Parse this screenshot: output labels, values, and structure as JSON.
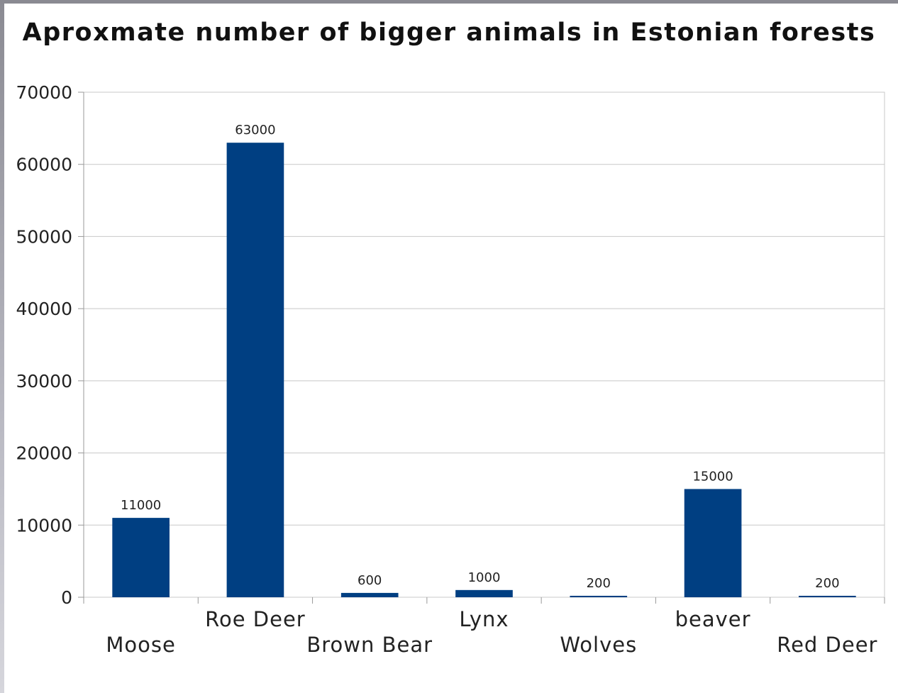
{
  "chart_data": {
    "type": "bar",
    "title": "Aproxmate number of bigger animals in Estonian forests",
    "categories": [
      "Moose",
      "Roe Deer",
      "Brown Bear",
      "Lynx",
      "Wolves",
      "beaver",
      "Red Deer"
    ],
    "values": [
      11000,
      63000,
      600,
      1000,
      200,
      15000,
      200
    ],
    "data_labels": [
      "11000",
      "63000",
      "600",
      "1000",
      "200",
      "15000",
      "200"
    ],
    "xlabel": "",
    "ylabel": "",
    "ylim": [
      0,
      70000
    ],
    "yticks": [
      0,
      10000,
      20000,
      30000,
      40000,
      50000,
      60000,
      70000
    ],
    "ytick_labels": [
      "0",
      "10000",
      "20000",
      "30000",
      "40000",
      "50000",
      "60000",
      "70000"
    ],
    "grid": true,
    "legend": "none",
    "bar_color": "#003f82"
  }
}
